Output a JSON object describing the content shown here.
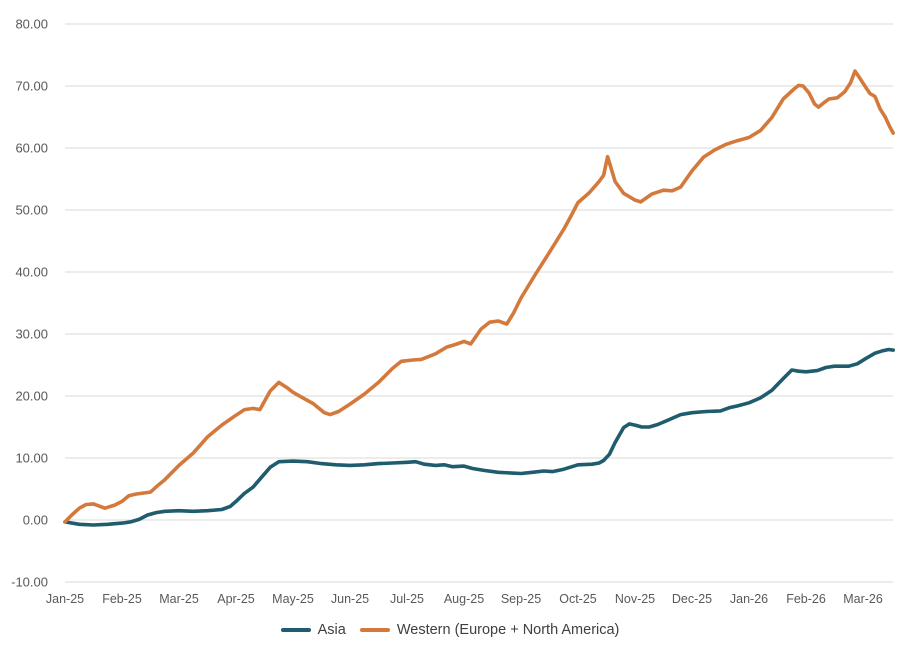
{
  "chart_data": {
    "type": "line",
    "title": "",
    "xlabel": "",
    "ylabel": "",
    "grid": true,
    "legend_position": "bottom",
    "x_axis": {
      "categories": [
        "Jan-25",
        "Feb-25",
        "Mar-25",
        "Apr-25",
        "May-25",
        "Jun-25",
        "Jul-25",
        "Aug-25",
        "Sep-25",
        "Oct-25",
        "Nov-25",
        "Dec-25",
        "Jan-26",
        "Feb-26",
        "Mar-26"
      ]
    },
    "y_axis": {
      "min": -10,
      "max": 80,
      "step": 10,
      "tick_labels": [
        "80.00",
        "70.00",
        "60.00",
        "50.00",
        "40.00",
        "30.00",
        "20.00",
        "10.00",
        "0.00",
        "-10.00"
      ]
    },
    "series": [
      {
        "name": "Asia",
        "color": "#1F5C6E",
        "points": [
          [
            0,
            -0.3
          ],
          [
            0.25,
            -0.7
          ],
          [
            0.5,
            -0.8
          ],
          [
            0.75,
            -0.7
          ],
          [
            1.0,
            -0.5
          ],
          [
            1.15,
            -0.3
          ],
          [
            1.3,
            0.1
          ],
          [
            1.45,
            0.8
          ],
          [
            1.6,
            1.2
          ],
          [
            1.75,
            1.4
          ],
          [
            2.0,
            1.5
          ],
          [
            2.25,
            1.4
          ],
          [
            2.5,
            1.5
          ],
          [
            2.75,
            1.7
          ],
          [
            2.9,
            2.2
          ],
          [
            3.0,
            3.0
          ],
          [
            3.15,
            4.3
          ],
          [
            3.3,
            5.3
          ],
          [
            3.45,
            6.9
          ],
          [
            3.6,
            8.5
          ],
          [
            3.75,
            9.4
          ],
          [
            4.0,
            9.5
          ],
          [
            4.25,
            9.4
          ],
          [
            4.5,
            9.1
          ],
          [
            4.75,
            8.9
          ],
          [
            5.0,
            8.8
          ],
          [
            5.25,
            8.9
          ],
          [
            5.5,
            9.1
          ],
          [
            5.75,
            9.2
          ],
          [
            6.0,
            9.3
          ],
          [
            6.15,
            9.4
          ],
          [
            6.3,
            9.0
          ],
          [
            6.5,
            8.8
          ],
          [
            6.65,
            8.9
          ],
          [
            6.8,
            8.6
          ],
          [
            7.0,
            8.7
          ],
          [
            7.15,
            8.3
          ],
          [
            7.35,
            8.0
          ],
          [
            7.6,
            7.7
          ],
          [
            7.8,
            7.6
          ],
          [
            8.0,
            7.5
          ],
          [
            8.2,
            7.7
          ],
          [
            8.4,
            7.9
          ],
          [
            8.55,
            7.8
          ],
          [
            8.75,
            8.2
          ],
          [
            9.0,
            8.9
          ],
          [
            9.25,
            9.0
          ],
          [
            9.37,
            9.2
          ],
          [
            9.45,
            9.6
          ],
          [
            9.55,
            10.6
          ],
          [
            9.65,
            12.5
          ],
          [
            9.8,
            14.9
          ],
          [
            9.9,
            15.5
          ],
          [
            10.0,
            15.3
          ],
          [
            10.12,
            15.0
          ],
          [
            10.25,
            15.0
          ],
          [
            10.4,
            15.4
          ],
          [
            10.6,
            16.2
          ],
          [
            10.8,
            17.0
          ],
          [
            11.0,
            17.3
          ],
          [
            11.25,
            17.5
          ],
          [
            11.5,
            17.6
          ],
          [
            11.65,
            18.1
          ],
          [
            11.8,
            18.4
          ],
          [
            12.0,
            18.9
          ],
          [
            12.2,
            19.7
          ],
          [
            12.4,
            20.9
          ],
          [
            12.6,
            22.8
          ],
          [
            12.75,
            24.2
          ],
          [
            12.87,
            24.0
          ],
          [
            13.0,
            23.9
          ],
          [
            13.2,
            24.1
          ],
          [
            13.35,
            24.6
          ],
          [
            13.5,
            24.8
          ],
          [
            13.75,
            24.8
          ],
          [
            13.9,
            25.2
          ],
          [
            14.04,
            26.0
          ],
          [
            14.21,
            26.9
          ],
          [
            14.35,
            27.3
          ],
          [
            14.45,
            27.5
          ],
          [
            14.53,
            27.4
          ]
        ]
      },
      {
        "name": "Western (Europe + North America)",
        "color": "#D4793C",
        "points": [
          [
            0,
            -0.3
          ],
          [
            0.12,
            0.8
          ],
          [
            0.25,
            1.9
          ],
          [
            0.37,
            2.5
          ],
          [
            0.5,
            2.6
          ],
          [
            0.7,
            1.9
          ],
          [
            0.87,
            2.4
          ],
          [
            1.0,
            3.0
          ],
          [
            1.12,
            3.9
          ],
          [
            1.25,
            4.2
          ],
          [
            1.5,
            4.5
          ],
          [
            1.62,
            5.5
          ],
          [
            1.75,
            6.5
          ],
          [
            2.0,
            8.8
          ],
          [
            2.25,
            10.8
          ],
          [
            2.5,
            13.4
          ],
          [
            2.75,
            15.3
          ],
          [
            3.0,
            16.9
          ],
          [
            3.15,
            17.8
          ],
          [
            3.3,
            18.0
          ],
          [
            3.42,
            17.8
          ],
          [
            3.6,
            20.8
          ],
          [
            3.75,
            22.2
          ],
          [
            3.9,
            21.3
          ],
          [
            4.0,
            20.6
          ],
          [
            4.15,
            19.8
          ],
          [
            4.35,
            18.8
          ],
          [
            4.55,
            17.3
          ],
          [
            4.65,
            17.0
          ],
          [
            4.8,
            17.5
          ],
          [
            5.0,
            18.7
          ],
          [
            5.25,
            20.3
          ],
          [
            5.5,
            22.2
          ],
          [
            5.75,
            24.5
          ],
          [
            5.9,
            25.6
          ],
          [
            6.1,
            25.8
          ],
          [
            6.25,
            25.9
          ],
          [
            6.5,
            26.8
          ],
          [
            6.7,
            27.9
          ],
          [
            6.85,
            28.3
          ],
          [
            7.0,
            28.8
          ],
          [
            7.12,
            28.4
          ],
          [
            7.3,
            30.8
          ],
          [
            7.45,
            31.9
          ],
          [
            7.6,
            32.1
          ],
          [
            7.75,
            31.6
          ],
          [
            7.87,
            33.4
          ],
          [
            8.0,
            35.8
          ],
          [
            8.25,
            39.6
          ],
          [
            8.5,
            43.2
          ],
          [
            8.75,
            46.9
          ],
          [
            8.87,
            48.9
          ],
          [
            9.0,
            51.2
          ],
          [
            9.2,
            52.8
          ],
          [
            9.37,
            54.6
          ],
          [
            9.45,
            55.6
          ],
          [
            9.52,
            58.6
          ],
          [
            9.65,
            54.6
          ],
          [
            9.8,
            52.7
          ],
          [
            10.0,
            51.6
          ],
          [
            10.1,
            51.3
          ],
          [
            10.3,
            52.6
          ],
          [
            10.5,
            53.2
          ],
          [
            10.65,
            53.1
          ],
          [
            10.8,
            53.7
          ],
          [
            11.0,
            56.3
          ],
          [
            11.2,
            58.5
          ],
          [
            11.4,
            59.7
          ],
          [
            11.6,
            60.6
          ],
          [
            11.8,
            61.2
          ],
          [
            12.0,
            61.7
          ],
          [
            12.2,
            62.8
          ],
          [
            12.4,
            64.9
          ],
          [
            12.6,
            67.9
          ],
          [
            12.8,
            69.6
          ],
          [
            12.87,
            70.1
          ],
          [
            12.95,
            70.0
          ],
          [
            13.05,
            68.9
          ],
          [
            13.15,
            67.1
          ],
          [
            13.22,
            66.6
          ],
          [
            13.3,
            67.2
          ],
          [
            13.4,
            67.9
          ],
          [
            13.55,
            68.1
          ],
          [
            13.68,
            69.1
          ],
          [
            13.78,
            70.5
          ],
          [
            13.86,
            72.4
          ],
          [
            13.95,
            71.2
          ],
          [
            14.04,
            69.9
          ],
          [
            14.12,
            68.8
          ],
          [
            14.21,
            68.3
          ],
          [
            14.3,
            66.3
          ],
          [
            14.39,
            65.0
          ],
          [
            14.47,
            63.4
          ],
          [
            14.53,
            62.4
          ]
        ]
      }
    ],
    "colors": {
      "background": "#FFFFFF",
      "gridline": "#D9D9D9",
      "tick_label": "#595959",
      "legend_text": "#3F3F3F"
    }
  }
}
